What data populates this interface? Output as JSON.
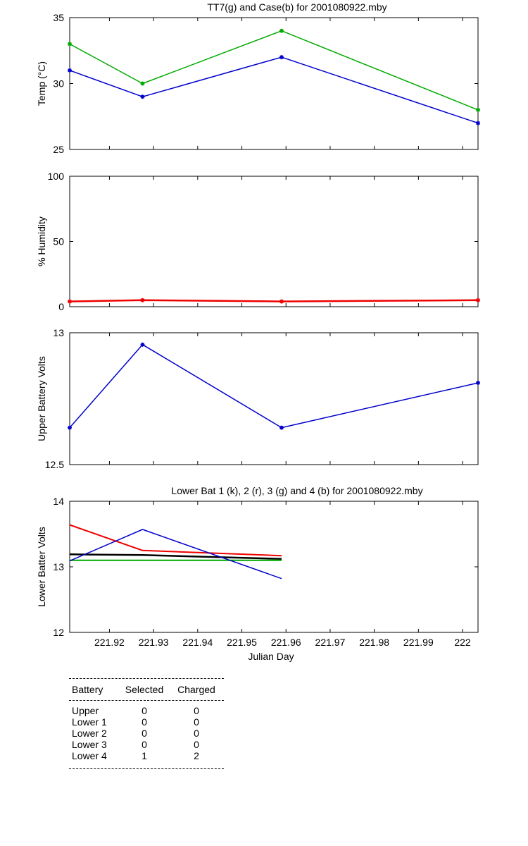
{
  "chart_data": [
    {
      "type": "line",
      "title": "TT7(g) and Case(b) for 2001080922.mby",
      "ylabel": "Temp  (°C)",
      "xlabel": "",
      "xlim": [
        221.911,
        222.0035
      ],
      "ylim": [
        25,
        35
      ],
      "yticks": [
        25,
        30,
        35
      ],
      "x": [
        221.911,
        221.9275,
        221.959,
        222.0035
      ],
      "series": [
        {
          "values": [
            33,
            30,
            34,
            28
          ],
          "color": "#00aa00",
          "width": 1.5
        },
        {
          "values": [
            31,
            29,
            32,
            27
          ],
          "color": "#0000cc",
          "width": 1.5
        }
      ],
      "markers": true
    },
    {
      "type": "line",
      "title": "",
      "ylabel": "% Humidity",
      "xlabel": "",
      "xlim": [
        221.911,
        222.0035
      ],
      "ylim": [
        0,
        100
      ],
      "yticks": [
        0,
        50,
        100
      ],
      "x": [
        221.911,
        221.9275,
        221.959,
        222.0035
      ],
      "series": [
        {
          "values": [
            4,
            5,
            4,
            5
          ],
          "color": "#ee0000",
          "width": 2.5
        }
      ],
      "markers": true
    },
    {
      "type": "line",
      "title": "",
      "ylabel": "Upper Battery Volts",
      "xlabel": "",
      "xlim": [
        221.911,
        222.0035
      ],
      "ylim": [
        12.5,
        13
      ],
      "yticks": [
        12.5,
        13
      ],
      "x": [
        221.911,
        221.9275,
        221.959,
        222.0035
      ],
      "series": [
        {
          "values": [
            12.64,
            12.955,
            12.64,
            12.81
          ],
          "color": "#0000cc",
          "width": 1.5
        }
      ],
      "markers": true
    },
    {
      "type": "line",
      "title": "Lower Bat 1 (k), 2 (r), 3 (g) and 4 (b) for 2001080922.mby",
      "ylabel": "Lower Batter Volts",
      "xlabel": "Julian Day",
      "xlim": [
        221.911,
        222.0035
      ],
      "ylim": [
        12,
        14
      ],
      "yticks": [
        12,
        13,
        14
      ],
      "xticks": [
        221.92,
        221.93,
        221.94,
        221.95,
        221.96,
        221.97,
        221.98,
        221.99,
        222
      ],
      "xticklabels": [
        "221.92",
        "221.93",
        "221.94",
        "221.95",
        "221.96",
        "221.97",
        "221.98",
        "221.99",
        "222"
      ],
      "x": [
        221.911,
        221.9275,
        221.959
      ],
      "series": [
        {
          "values": [
            13.19,
            13.18,
            13.12
          ],
          "color": "#000000",
          "width": 2.5
        },
        {
          "values": [
            13.64,
            13.25,
            13.17
          ],
          "color": "#ee0000",
          "width": 2
        },
        {
          "values": [
            13.1,
            13.1,
            13.1
          ],
          "color": "#00aa00",
          "width": 2
        },
        {
          "values": [
            13.09,
            13.57,
            12.82
          ],
          "color": "#0000cc",
          "width": 1.5
        }
      ],
      "markers": false
    }
  ],
  "battery_table": {
    "headers": [
      "Battery",
      "Selected",
      "Charged"
    ],
    "rows": [
      [
        "Upper",
        "0",
        "0"
      ],
      [
        "Lower 1",
        "0",
        "0"
      ],
      [
        "Lower 2",
        "0",
        "0"
      ],
      [
        "Lower 3",
        "0",
        "0"
      ],
      [
        "Lower 4",
        "1",
        "2"
      ]
    ]
  }
}
